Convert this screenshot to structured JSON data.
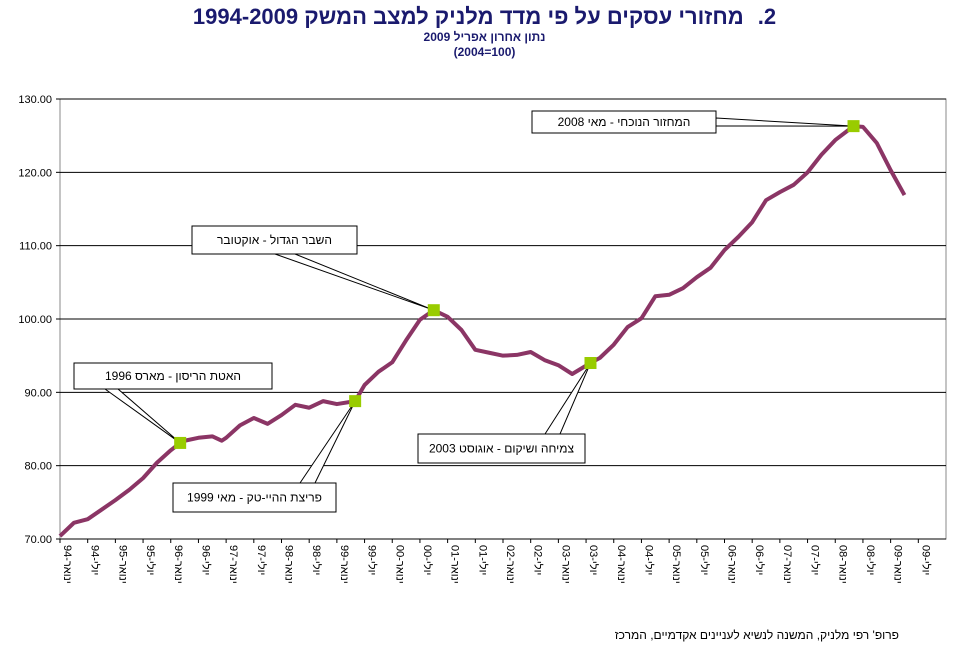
{
  "chart_data": {
    "type": "line",
    "number": "2.",
    "title": "מחזורי עסקים על פי מדד מלניק למצב המשק 1994-2009",
    "subtitle": "נתון אחרון אפריל 2009",
    "base_note": "(2004=100)",
    "source": "פרופ' רפי מלניק, המשנה לנשיא לעניינים אקדמיים, המרכז",
    "xlim": [
      1994,
      2010
    ],
    "ylim": [
      70,
      130
    ],
    "yticks": [
      {
        "value": 70,
        "label": "70.00"
      },
      {
        "value": 80,
        "label": "80.00"
      },
      {
        "value": 90,
        "label": "90.00"
      },
      {
        "value": 100,
        "label": "100.00"
      },
      {
        "value": 110,
        "label": "110.00"
      },
      {
        "value": 120,
        "label": "120.00"
      },
      {
        "value": 130,
        "label": "130.00"
      }
    ],
    "xticks": [
      {
        "value": 1994,
        "label": "ינואר-94"
      },
      {
        "value": 1994.5,
        "label": "יולי-94"
      },
      {
        "value": 1995,
        "label": "ינואר-95"
      },
      {
        "value": 1995.5,
        "label": "יולי-95"
      },
      {
        "value": 1996,
        "label": "ינואר-96"
      },
      {
        "value": 1996.5,
        "label": "יולי-96"
      },
      {
        "value": 1997,
        "label": "ינואר-97"
      },
      {
        "value": 1997.5,
        "label": "יולי-97"
      },
      {
        "value": 1998,
        "label": "ינואר-98"
      },
      {
        "value": 1998.5,
        "label": "יולי-98"
      },
      {
        "value": 1999,
        "label": "ינואר-99"
      },
      {
        "value": 1999.5,
        "label": "יולי-99"
      },
      {
        "value": 2000,
        "label": "ינואר-00"
      },
      {
        "value": 2000.5,
        "label": "יולי-00"
      },
      {
        "value": 2001,
        "label": "ינואר-01"
      },
      {
        "value": 2001.5,
        "label": "יולי-01"
      },
      {
        "value": 2002,
        "label": "ינואר-02"
      },
      {
        "value": 2002.5,
        "label": "יולי-02"
      },
      {
        "value": 2003,
        "label": "ינואר-03"
      },
      {
        "value": 2003.5,
        "label": "יולי-03"
      },
      {
        "value": 2004,
        "label": "ינואר-04"
      },
      {
        "value": 2004.5,
        "label": "יולי-04"
      },
      {
        "value": 2005,
        "label": "ינואר-05"
      },
      {
        "value": 2005.5,
        "label": "יולי-05"
      },
      {
        "value": 2006,
        "label": "ינואר-06"
      },
      {
        "value": 2006.5,
        "label": "יולי-06"
      },
      {
        "value": 2007,
        "label": "ינואר-07"
      },
      {
        "value": 2007.5,
        "label": "יולי-07"
      },
      {
        "value": 2008,
        "label": "ינואר-08"
      },
      {
        "value": 2008.5,
        "label": "יולי-08"
      },
      {
        "value": 2009,
        "label": "ינואר-09"
      },
      {
        "value": 2009.5,
        "label": "יולי-09"
      }
    ],
    "grid": true,
    "color": "#8b3565",
    "x": [
      1994,
      1994.25,
      1994.5,
      1994.75,
      1995,
      1995.25,
      1995.5,
      1995.75,
      1996,
      1996.17,
      1996.25,
      1996.5,
      1996.75,
      1996.92,
      1997,
      1997.25,
      1997.5,
      1997.75,
      1998,
      1998.25,
      1998.5,
      1998.75,
      1999,
      1999.33,
      1999.5,
      1999.75,
      2000,
      2000.25,
      2000.5,
      2000.75,
      2001,
      2001.25,
      2001.5,
      2001.75,
      2002,
      2002.25,
      2002.5,
      2002.75,
      2003,
      2003.25,
      2003.58,
      2003.75,
      2004,
      2004.25,
      2004.5,
      2004.75,
      2005,
      2005.25,
      2005.5,
      2005.75,
      2006,
      2006.25,
      2006.5,
      2006.75,
      2007,
      2007.25,
      2007.5,
      2007.75,
      2008,
      2008.33,
      2008.5,
      2008.75,
      2009,
      2009.25
    ],
    "values": [
      70.4,
      72.2,
      72.7,
      74.0,
      75.3,
      76.7,
      78.3,
      80.4,
      82.1,
      83.1,
      83.4,
      83.8,
      84.0,
      83.4,
      83.8,
      85.5,
      86.5,
      85.7,
      86.9,
      88.3,
      87.9,
      88.8,
      88.4,
      88.8,
      91.0,
      92.8,
      94.1,
      97.1,
      99.9,
      101.2,
      100.3,
      98.5,
      95.8,
      95.4,
      95.0,
      95.1,
      95.5,
      94.4,
      93.7,
      92.5,
      94.0,
      94.7,
      96.5,
      98.9,
      100.1,
      103.1,
      103.3,
      104.2,
      105.7,
      107.0,
      109.4,
      111.2,
      113.2,
      116.2,
      117.3,
      118.3,
      120.0,
      122.4,
      124.4,
      126.3,
      126.2,
      124.0,
      120.3,
      116.9
    ],
    "highlights": {
      "color": "#99cc00",
      "x": [
        1996.17,
        1999.33,
        2000.75,
        2003.58,
        2008.33
      ],
      "values": [
        83.1,
        88.8,
        101.2,
        94.0,
        126.3
      ]
    },
    "annotations": [
      "האטת הריסון - מארס 1996",
      "פריצת ההיי-טק - מאי 1999",
      "השבר הגדול - אוקטובר",
      "צמיחה ושיקום - אוגוסט 2003",
      "המחזור הנוכחי - מאי 2008"
    ]
  }
}
